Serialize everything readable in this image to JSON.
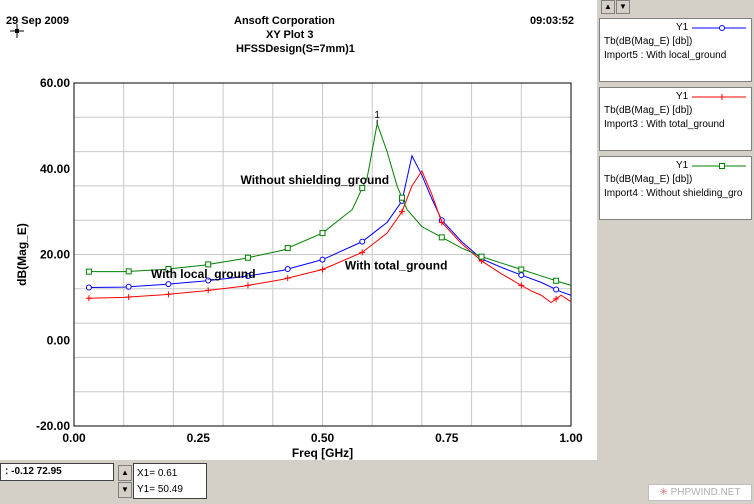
{
  "header": {
    "date": "29 Sep 2009",
    "company": "Ansoft Corporation",
    "plot_name": "XY Plot 3",
    "design": "HFSSDesign(S=7mm)1",
    "time": "09:03:52"
  },
  "legend": {
    "entries": [
      {
        "y": "Y1",
        "expr": "Tb(dB(Mag_E) [db])",
        "source": "Import5 : With local_ground",
        "color": "#0000ff",
        "marker": "circle"
      },
      {
        "y": "Y1",
        "expr": "Tb(dB(Mag_E) [db])",
        "source": "Import3 : With total_ground",
        "color": "#ff0000",
        "marker": "plus"
      },
      {
        "y": "Y1",
        "expr": "Tb(dB(Mag_E) [db])",
        "source": "Import4 : Without shielding_gro",
        "color": "#008000",
        "marker": "square"
      }
    ]
  },
  "status": {
    "coords": ": -0.12 72.95",
    "x1": "X1= 0.61",
    "y1": "Y1= 50.49"
  },
  "watermark": "PHPWIND.NET",
  "chart_data": {
    "type": "line",
    "title": "XY Plot 3",
    "xlabel": "Freq [GHz]",
    "ylabel": "dB(Mag_E)",
    "xlim": [
      0,
      1
    ],
    "ylim": [
      -20,
      60
    ],
    "xticks": [
      "0.00",
      "0.25",
      "0.50",
      "0.75",
      "1.00"
    ],
    "yticks": [
      "-20.00",
      "0.00",
      "20.00",
      "40.00",
      "60.00"
    ],
    "grid": true,
    "marker": {
      "label": "1",
      "x": 0.61,
      "y": 50.49
    },
    "annotations": [
      {
        "text": "Without shielding_ground",
        "x": 0.335,
        "y": 36.5
      },
      {
        "text": "With local_ground",
        "x": 0.155,
        "y": 14.5
      },
      {
        "text": "With total_ground",
        "x": 0.545,
        "y": 16.5
      }
    ],
    "series": [
      {
        "name": "With local_ground",
        "color": "#0000ff",
        "marker": "circle",
        "x": [
          0.03,
          0.1,
          0.18,
          0.26,
          0.34,
          0.42,
          0.5,
          0.58,
          0.63,
          0.66,
          0.68,
          0.7,
          0.72,
          0.74,
          0.78,
          0.82,
          0.86,
          0.9,
          0.94,
          0.98,
          1.0
        ],
        "values": [
          12.3,
          12.4,
          13.0,
          13.8,
          14.8,
          16.3,
          18.8,
          23.0,
          27.5,
          32.5,
          43.0,
          38.5,
          33.0,
          28.0,
          23.0,
          19.0,
          17.0,
          15.2,
          13.5,
          11.3,
          10.5
        ],
        "marker_x": [
          0.03,
          0.11,
          0.19,
          0.27,
          0.35,
          0.43,
          0.5,
          0.58,
          0.66,
          0.74,
          0.82,
          0.9,
          0.97
        ]
      },
      {
        "name": "With total_ground",
        "color": "#ff0000",
        "marker": "plus",
        "x": [
          0.03,
          0.1,
          0.18,
          0.26,
          0.34,
          0.42,
          0.5,
          0.58,
          0.63,
          0.66,
          0.68,
          0.7,
          0.72,
          0.74,
          0.78,
          0.82,
          0.86,
          0.9,
          0.92,
          0.94,
          0.96,
          0.98,
          1.0
        ],
        "values": [
          9.8,
          10.0,
          10.6,
          11.5,
          12.6,
          14.2,
          16.5,
          20.5,
          25.0,
          30.0,
          36.0,
          39.5,
          34.0,
          27.5,
          22.5,
          18.5,
          15.5,
          12.8,
          11.5,
          10.5,
          8.8,
          10.5,
          9.0
        ],
        "marker_x": [
          0.03,
          0.11,
          0.19,
          0.27,
          0.35,
          0.43,
          0.5,
          0.58,
          0.66,
          0.74,
          0.82,
          0.9,
          0.97
        ]
      },
      {
        "name": "Without shielding_ground",
        "color": "#008000",
        "marker": "square",
        "x": [
          0.03,
          0.1,
          0.18,
          0.26,
          0.34,
          0.42,
          0.5,
          0.56,
          0.59,
          0.61,
          0.63,
          0.65,
          0.67,
          0.7,
          0.74,
          0.78,
          0.82,
          0.86,
          0.9,
          0.94,
          0.98,
          1.0
        ],
        "values": [
          16.0,
          16.0,
          16.5,
          17.5,
          19.0,
          21.0,
          25.0,
          30.5,
          38.0,
          50.5,
          44.0,
          36.0,
          30.5,
          26.5,
          24.0,
          21.5,
          19.5,
          18.0,
          16.5,
          15.0,
          13.5,
          12.8
        ],
        "marker_x": [
          0.03,
          0.11,
          0.19,
          0.27,
          0.35,
          0.43,
          0.5,
          0.58,
          0.66,
          0.74,
          0.82,
          0.9,
          0.97
        ]
      }
    ]
  }
}
